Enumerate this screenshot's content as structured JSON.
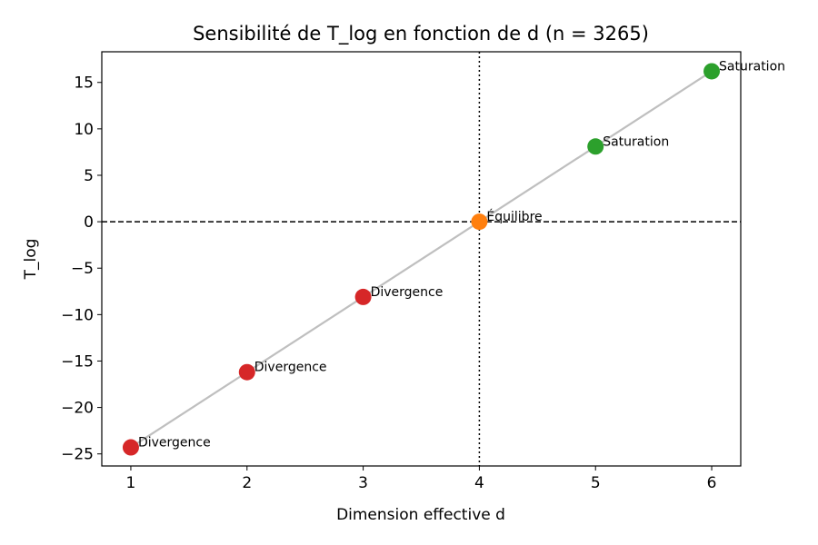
{
  "chart_data": {
    "type": "line",
    "title": "Sensibilité de T_log en fonction de d (n = 3265)",
    "xlabel": "Dimension effective d",
    "ylabel": "T_log",
    "xlim": [
      0.75,
      6.25
    ],
    "ylim": [
      -26.3,
      18.3
    ],
    "xticks": [
      1,
      2,
      3,
      4,
      5,
      6
    ],
    "yticks": [
      -25,
      -20,
      -15,
      -10,
      -5,
      0,
      5,
      10,
      15
    ],
    "grid": false,
    "line_color": "#bfbfbf",
    "reference_lines": [
      {
        "orientation": "horizontal",
        "value": 0,
        "style": "dashed",
        "color": "#000000"
      },
      {
        "orientation": "vertical",
        "value": 4,
        "style": "dotted",
        "color": "#000000"
      }
    ],
    "points": [
      {
        "x": 1,
        "y": -24.3,
        "label": "Divergence",
        "color": "#d62728"
      },
      {
        "x": 2,
        "y": -16.2,
        "label": "Divergence",
        "color": "#d62728"
      },
      {
        "x": 3,
        "y": -8.1,
        "label": "Divergence",
        "color": "#d62728"
      },
      {
        "x": 4,
        "y": 0.0,
        "label": "Équilibre",
        "color": "#ff7f0e"
      },
      {
        "x": 5,
        "y": 8.1,
        "label": "Saturation",
        "color": "#2ca02c"
      },
      {
        "x": 6,
        "y": 16.2,
        "label": "Saturation",
        "color": "#2ca02c"
      }
    ]
  }
}
